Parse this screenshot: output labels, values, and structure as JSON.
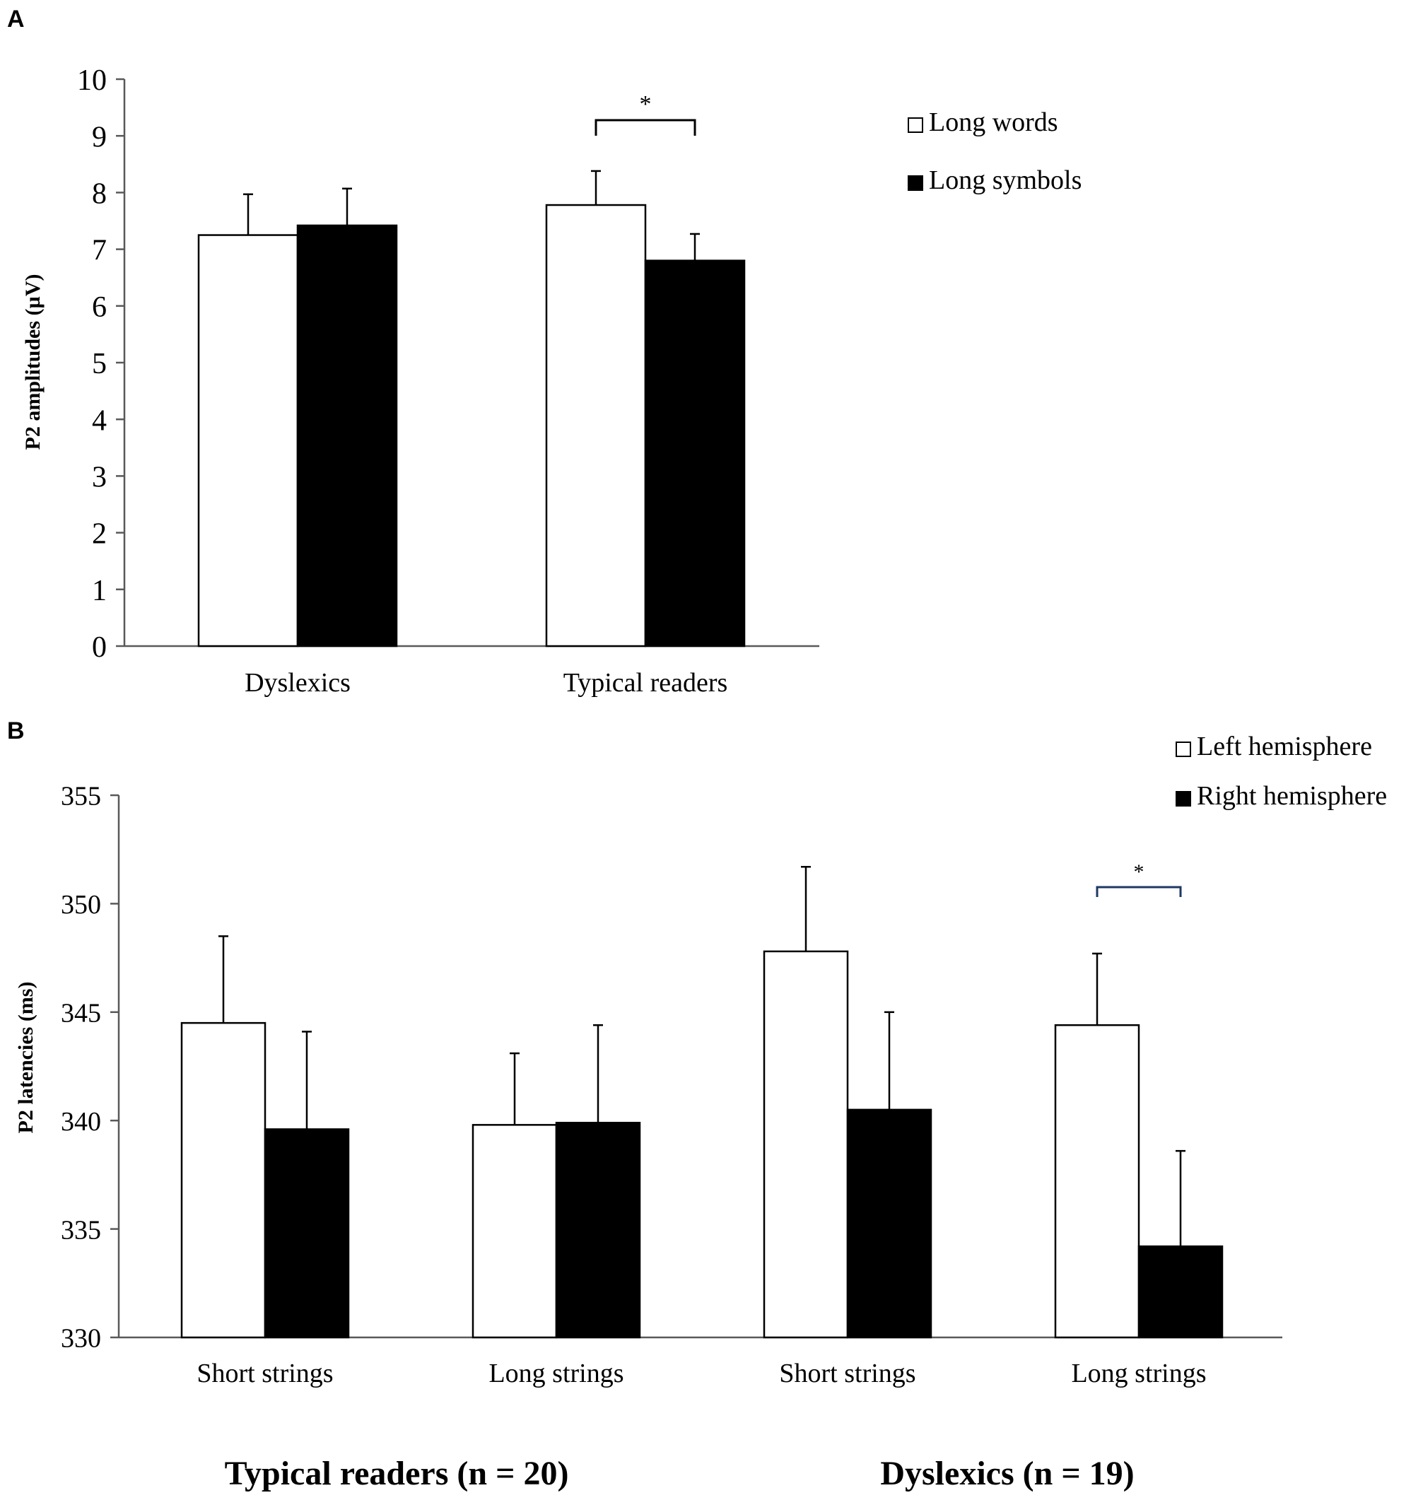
{
  "chart_data": [
    {
      "type": "bar",
      "panel_label": "A",
      "title": "",
      "xlabel": "",
      "ylabel": "P2 amplitudes (µV)",
      "ylim": [
        0,
        10
      ],
      "yticks": [
        0,
        1,
        2,
        3,
        4,
        5,
        6,
        7,
        8,
        9,
        10
      ],
      "categories": [
        "Dyslexics",
        "Typical readers"
      ],
      "series": [
        {
          "name": "Long words",
          "color": "#ffffff",
          "values": [
            7.25,
            7.78
          ],
          "errors": [
            0.72,
            0.6
          ]
        },
        {
          "name": "Long symbols",
          "color": "#000000",
          "values": [
            7.42,
            6.8
          ],
          "errors": [
            0.65,
            0.47
          ]
        }
      ],
      "significance": [
        {
          "category_index": 1,
          "label": "*"
        }
      ],
      "legend": "top-right",
      "grid": false
    },
    {
      "type": "bar",
      "panel_label": "B",
      "title": "",
      "xlabel": "",
      "ylabel": "P2 latencies (ms)",
      "ylim": [
        330,
        355
      ],
      "yticks": [
        330,
        335,
        340,
        345,
        350,
        355
      ],
      "categories": [
        "Short strings",
        "Long strings",
        "Short strings",
        "Long strings"
      ],
      "groups": [
        {
          "label": "Typical readers (n = 20)",
          "category_indices": [
            0,
            1
          ]
        },
        {
          "label": "Dyslexics (n = 19)",
          "category_indices": [
            2,
            3
          ]
        }
      ],
      "series": [
        {
          "name": "Left hemisphere",
          "color": "#ffffff",
          "values": [
            344.5,
            339.8,
            347.8,
            344.4
          ],
          "errors": [
            4.0,
            3.3,
            3.9,
            3.3
          ]
        },
        {
          "name": "Right hemisphere",
          "color": "#000000",
          "values": [
            339.6,
            339.9,
            340.5,
            334.2
          ],
          "errors": [
            4.5,
            4.5,
            4.5,
            4.4
          ]
        }
      ],
      "significance": [
        {
          "category_index": 3,
          "label": "*",
          "color": "#1f3864"
        }
      ],
      "legend": "top-right",
      "grid": false
    }
  ]
}
